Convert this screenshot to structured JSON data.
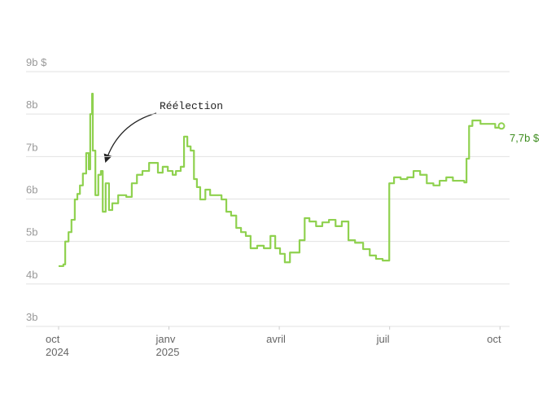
{
  "chart_data": {
    "type": "line",
    "step": true,
    "annotation": "Réélection",
    "end_label": "7,7b $",
    "color": "#8fd14f",
    "end_label_color": "#3d8c1e",
    "grid": true,
    "x": [
      0,
      0.13,
      0.18,
      0.27,
      0.35,
      0.44,
      0.51,
      0.58,
      0.66,
      0.75,
      0.82,
      0.86,
      0.91,
      0.93,
      1.0,
      1.08,
      1.15,
      1.2,
      1.28,
      1.37,
      1.46,
      1.62,
      1.84,
      1.99,
      2.13,
      2.28,
      2.46,
      2.57,
      2.7,
      2.83,
      2.97,
      3.1,
      3.19,
      3.32,
      3.41,
      3.5,
      3.59,
      3.68,
      3.76,
      3.85,
      3.99,
      4.12,
      4.29,
      4.43,
      4.56,
      4.69,
      4.83,
      4.96,
      5.09,
      5.22,
      5.4,
      5.58,
      5.76,
      5.89,
      6.02,
      6.15,
      6.29,
      6.42,
      6.55,
      6.69,
      6.82,
      7.0,
      7.17,
      7.35,
      7.53,
      7.7,
      7.88,
      8.06,
      8.28,
      8.46,
      8.63,
      8.81,
      8.94,
      8.99,
      9.12,
      9.3,
      9.48,
      9.65,
      9.83,
      10.01,
      10.19,
      10.36,
      10.54,
      10.72,
      10.9,
      11.03,
      11.09,
      11.16,
      11.25,
      11.47,
      11.69,
      11.87,
      12.04
    ],
    "values": [
      4.42,
      4.46,
      5.0,
      5.22,
      5.51,
      5.99,
      6.12,
      6.32,
      6.6,
      7.08,
      6.7,
      8.0,
      8.48,
      7.14,
      6.09,
      6.57,
      6.66,
      5.7,
      6.37,
      5.74,
      5.9,
      6.09,
      6.05,
      6.37,
      6.57,
      6.66,
      6.85,
      6.85,
      6.62,
      6.76,
      6.66,
      6.57,
      6.66,
      6.76,
      7.47,
      7.24,
      7.14,
      6.47,
      6.28,
      5.99,
      6.22,
      6.09,
      6.09,
      5.99,
      5.7,
      5.61,
      5.32,
      5.22,
      5.13,
      4.84,
      4.9,
      4.84,
      5.13,
      4.84,
      4.71,
      4.51,
      4.74,
      4.74,
      5.03,
      5.55,
      5.47,
      5.36,
      5.45,
      5.51,
      5.36,
      5.47,
      5.03,
      4.97,
      4.82,
      4.67,
      4.59,
      4.55,
      4.55,
      6.37,
      6.51,
      6.47,
      6.51,
      6.66,
      6.57,
      6.37,
      6.32,
      6.43,
      6.51,
      6.43,
      6.43,
      6.39,
      6.95,
      7.72,
      7.85,
      7.77,
      7.77,
      7.68,
      7.72
    ],
    "xlim": [
      -0.885,
      12.26
    ],
    "xticks": [
      {
        "value": 0,
        "label": "oct\n2024"
      },
      {
        "value": 3,
        "label": "janv\n2025"
      },
      {
        "value": 6,
        "label": "avril"
      },
      {
        "value": 9,
        "label": "juil"
      },
      {
        "value": 12,
        "label": "oct"
      }
    ],
    "ylim": [
      3,
      9
    ],
    "yticks": [
      {
        "value": 3,
        "label": "3b"
      },
      {
        "value": 4,
        "label": "4b"
      },
      {
        "value": 5,
        "label": "5b"
      },
      {
        "value": 6,
        "label": "6b"
      },
      {
        "value": 7,
        "label": "7b"
      },
      {
        "value": 8,
        "label": "8b"
      },
      {
        "value": 9,
        "label": "9b $"
      }
    ]
  }
}
